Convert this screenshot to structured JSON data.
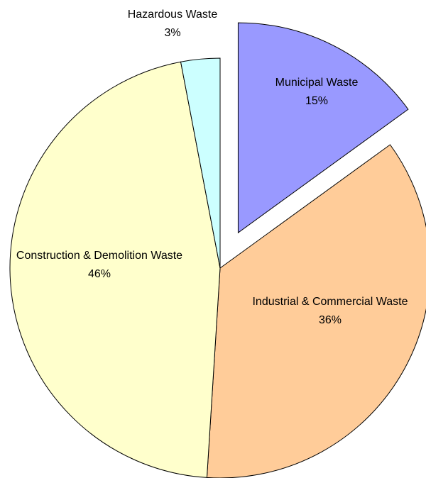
{
  "chart_data": {
    "type": "pie",
    "categories": [
      "Municipal Waste",
      "Industrial & Commercial Waste",
      "Construction & Demolition Waste",
      "Hazardous Waste"
    ],
    "values": [
      15,
      36,
      46,
      3
    ],
    "value_labels": [
      "15%",
      "36%",
      "46%",
      "3%"
    ],
    "colors": [
      "#9999ff",
      "#ffcc99",
      "#ffffcc",
      "#ccffff"
    ]
  }
}
